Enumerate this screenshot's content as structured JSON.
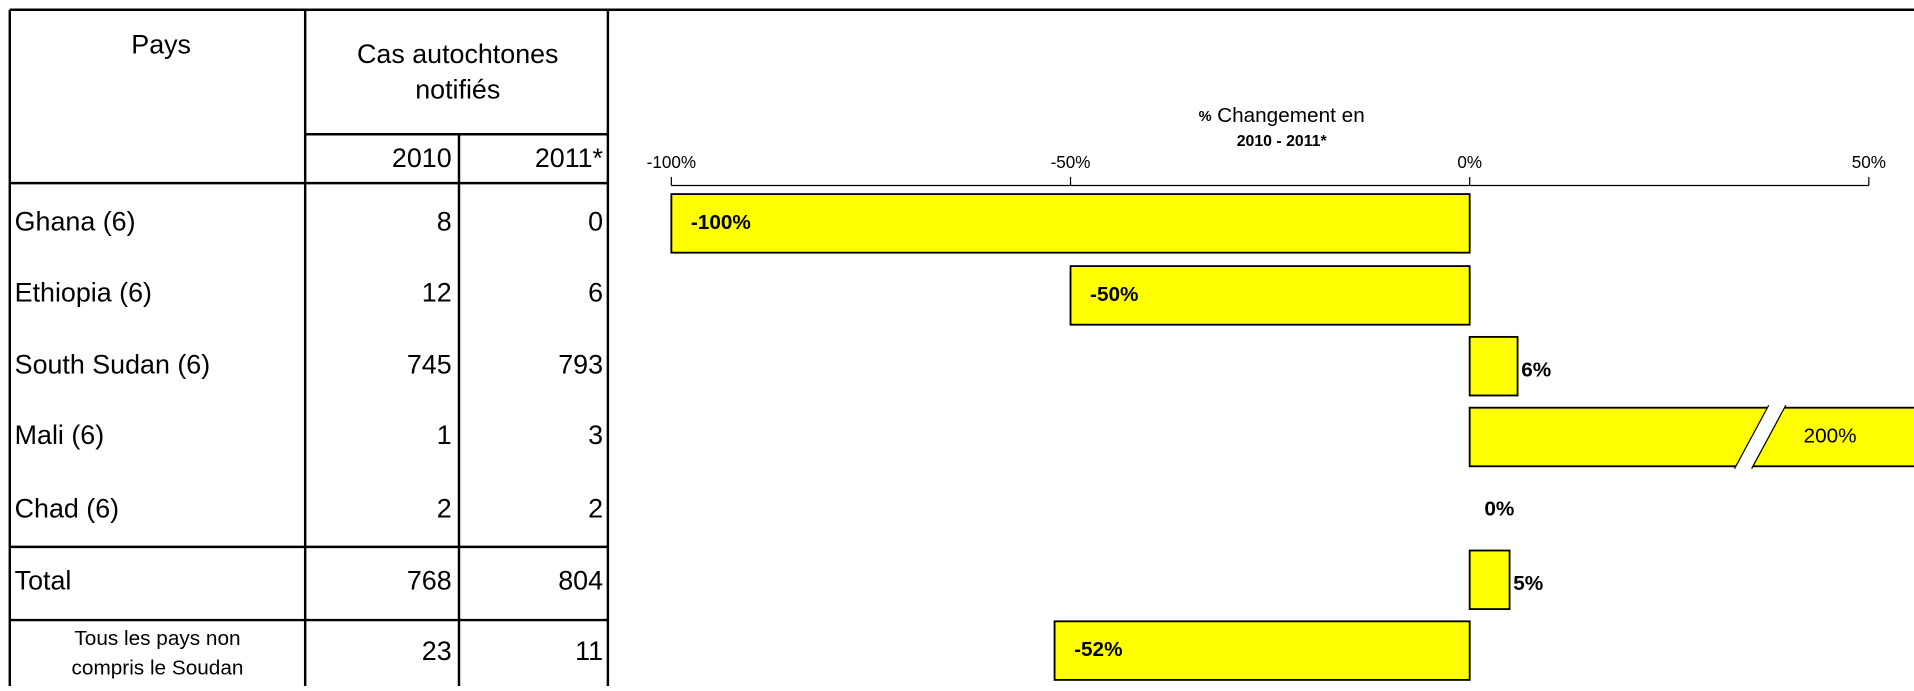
{
  "table": {
    "header": {
      "country": "Pays",
      "cases_line1": "Cas autochtones",
      "cases_line2": "notifiés",
      "years": [
        "2010",
        "2011*"
      ]
    },
    "rows": [
      [
        "Ghana (6)",
        8,
        0
      ],
      [
        "Ethiopia (6)",
        12,
        6
      ],
      [
        "South Sudan (6)",
        745,
        793
      ],
      [
        "Mali (6)",
        1,
        3
      ],
      [
        "Chad (6)",
        2,
        2
      ],
      [
        "Total",
        768,
        804
      ]
    ],
    "footer": {
      "label_line1": "Tous les pays non",
      "label_line2": "compris le Soudan",
      "values": [
        23,
        11
      ]
    }
  },
  "chart_data": {
    "type": "bar",
    "orientation": "horizontal",
    "title_prefix": "%",
    "title": "Changement en",
    "subtitle": "2010 - 2011*",
    "values": [
      -100,
      -50,
      6,
      200,
      0,
      5,
      -52
    ],
    "value_labels": [
      "-100%",
      "-50%",
      "6%",
      "200%",
      "0%",
      "5%",
      "-52%"
    ],
    "color": "#ffff00",
    "xlim": [
      -100,
      50
    ],
    "xticks": [
      {
        "value": -100,
        "label": "-100%"
      },
      {
        "value": -50,
        "label": "-50%"
      },
      {
        "value": 0,
        "label": "0%"
      },
      {
        "value": 50,
        "label": "50%"
      }
    ]
  }
}
